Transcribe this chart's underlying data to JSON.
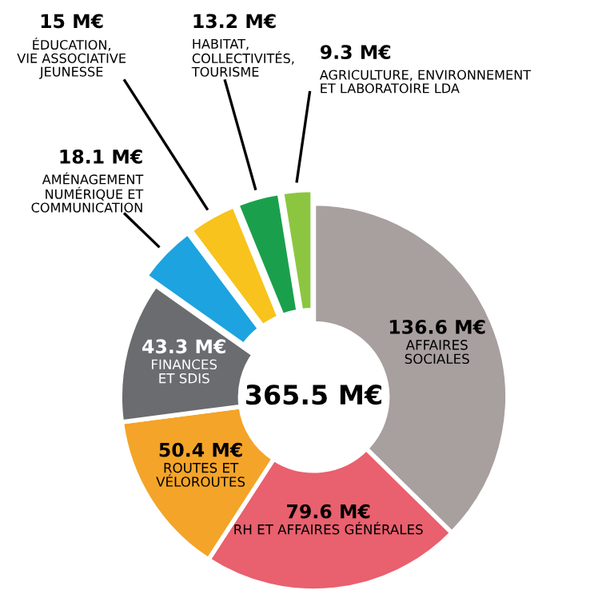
{
  "chart_data": {
    "type": "donut",
    "categories": [
      "AFFAIRES\nSOCIALES",
      "RH ET AFFAIRES GÉNÉRALES",
      "ROUTES ET\nVÉLOROUTES",
      "FINANCES\nET SDIS",
      "AMÉNAGEMENT\nNUMÉRIQUE ET\nCOMMUNICATION",
      "ÉDUCATION,\nVIE ASSOCIATIVE\nJEUNESSE",
      "HABITAT,\nCOLLECTIVITÉS,\nTOURISME",
      "AGRICULTURE, ENVIRONNEMENT\nET LABORATOIRE LDA"
    ],
    "values": [
      136.6,
      79.6,
      50.4,
      43.3,
      18.1,
      15,
      13.2,
      9.3
    ],
    "value_labels": [
      "136.6 M€",
      "79.6 M€",
      "50.4 M€",
      "43.3 M€",
      "18.1 M€",
      "15 M€",
      "13.2 M€",
      "9.3 M€"
    ],
    "colors": [
      "#a89f9f",
      "#e9606e",
      "#f4a428",
      "#6b6c70",
      "#1ca3e0",
      "#f7c31c",
      "#1aa04c",
      "#8cc640"
    ],
    "annotations": [
      "365.5 M€"
    ]
  }
}
